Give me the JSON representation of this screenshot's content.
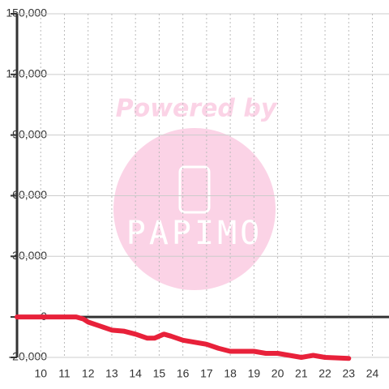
{
  "chart_data": {
    "type": "line",
    "watermark": "Powered by",
    "watermark_logo": "PAPIMO",
    "x": [
      9,
      11.5,
      11.8,
      12,
      12.5,
      13,
      13.5,
      14,
      14.5,
      14.8,
      15.2,
      15.5,
      16,
      16.5,
      17,
      17.5,
      18,
      18.5,
      19,
      19.5,
      20,
      20.5,
      21,
      21.5,
      22,
      23
    ],
    "series": [
      {
        "color": "#e8213a",
        "values": [
          0,
          0,
          -1000,
          -2500,
          -4500,
          -6500,
          -7000,
          -8500,
          -10500,
          -10500,
          -8500,
          -9500,
          -11500,
          -12500,
          -13500,
          -15500,
          -17000,
          -17000,
          -17000,
          -18000,
          -18000,
          -19000,
          -20000,
          -19000,
          -20000,
          -20500
        ]
      }
    ],
    "xlim": [
      9,
      24.7
    ],
    "xticks": [
      10,
      11,
      12,
      13,
      14,
      15,
      16,
      17,
      18,
      19,
      20,
      21,
      22,
      23,
      24
    ],
    "ylim": [
      -20000,
      150000
    ],
    "yticks": [
      {
        "value": -20000,
        "label": "-20,000"
      },
      0,
      {
        "value": 30000,
        "label": "30,000"
      },
      {
        "value": 60000,
        "label": "60,000"
      },
      {
        "value": 90000,
        "label": "90,000"
      },
      {
        "value": 120000,
        "label": "120,000"
      },
      {
        "value": 150000,
        "label": "150,000"
      }
    ],
    "grid": true
  }
}
